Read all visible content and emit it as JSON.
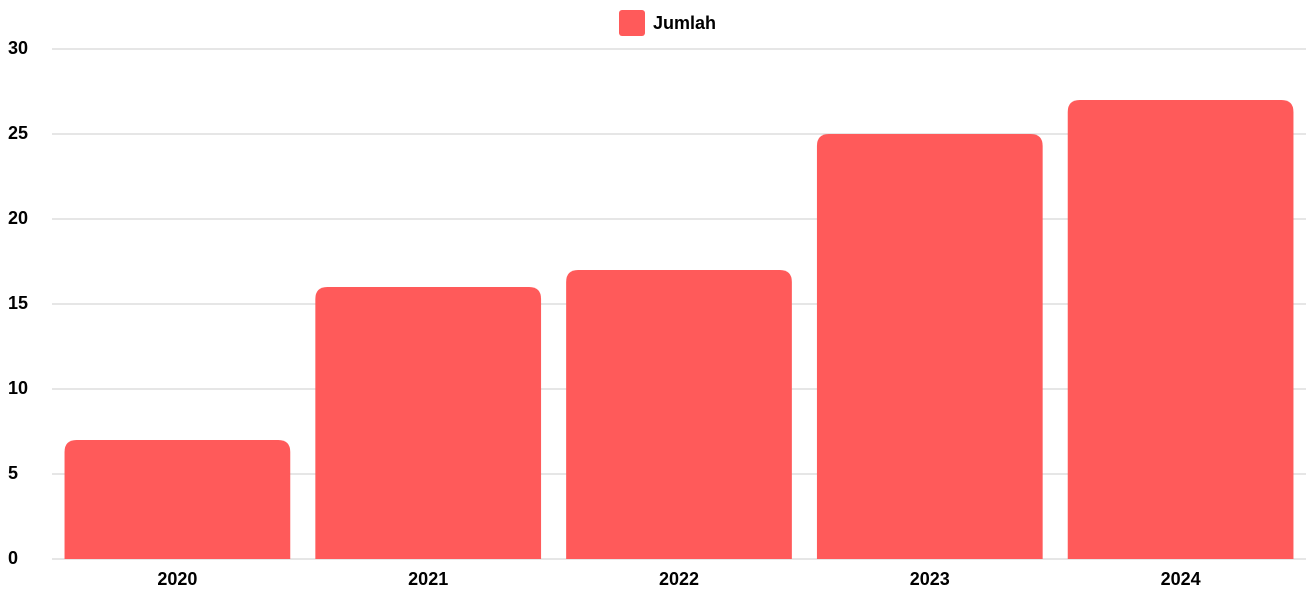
{
  "chart_data": {
    "type": "bar",
    "categories": [
      "2020",
      "2021",
      "2022",
      "2023",
      "2024"
    ],
    "series": [
      {
        "name": "Jumlah",
        "color": "#ff5a5a",
        "values": [
          7,
          16,
          17,
          25,
          27
        ]
      }
    ],
    "ylim": [
      0,
      30
    ],
    "yticks": [
      0,
      5,
      10,
      15,
      20,
      25,
      30
    ],
    "grid": true,
    "legend": "top"
  }
}
